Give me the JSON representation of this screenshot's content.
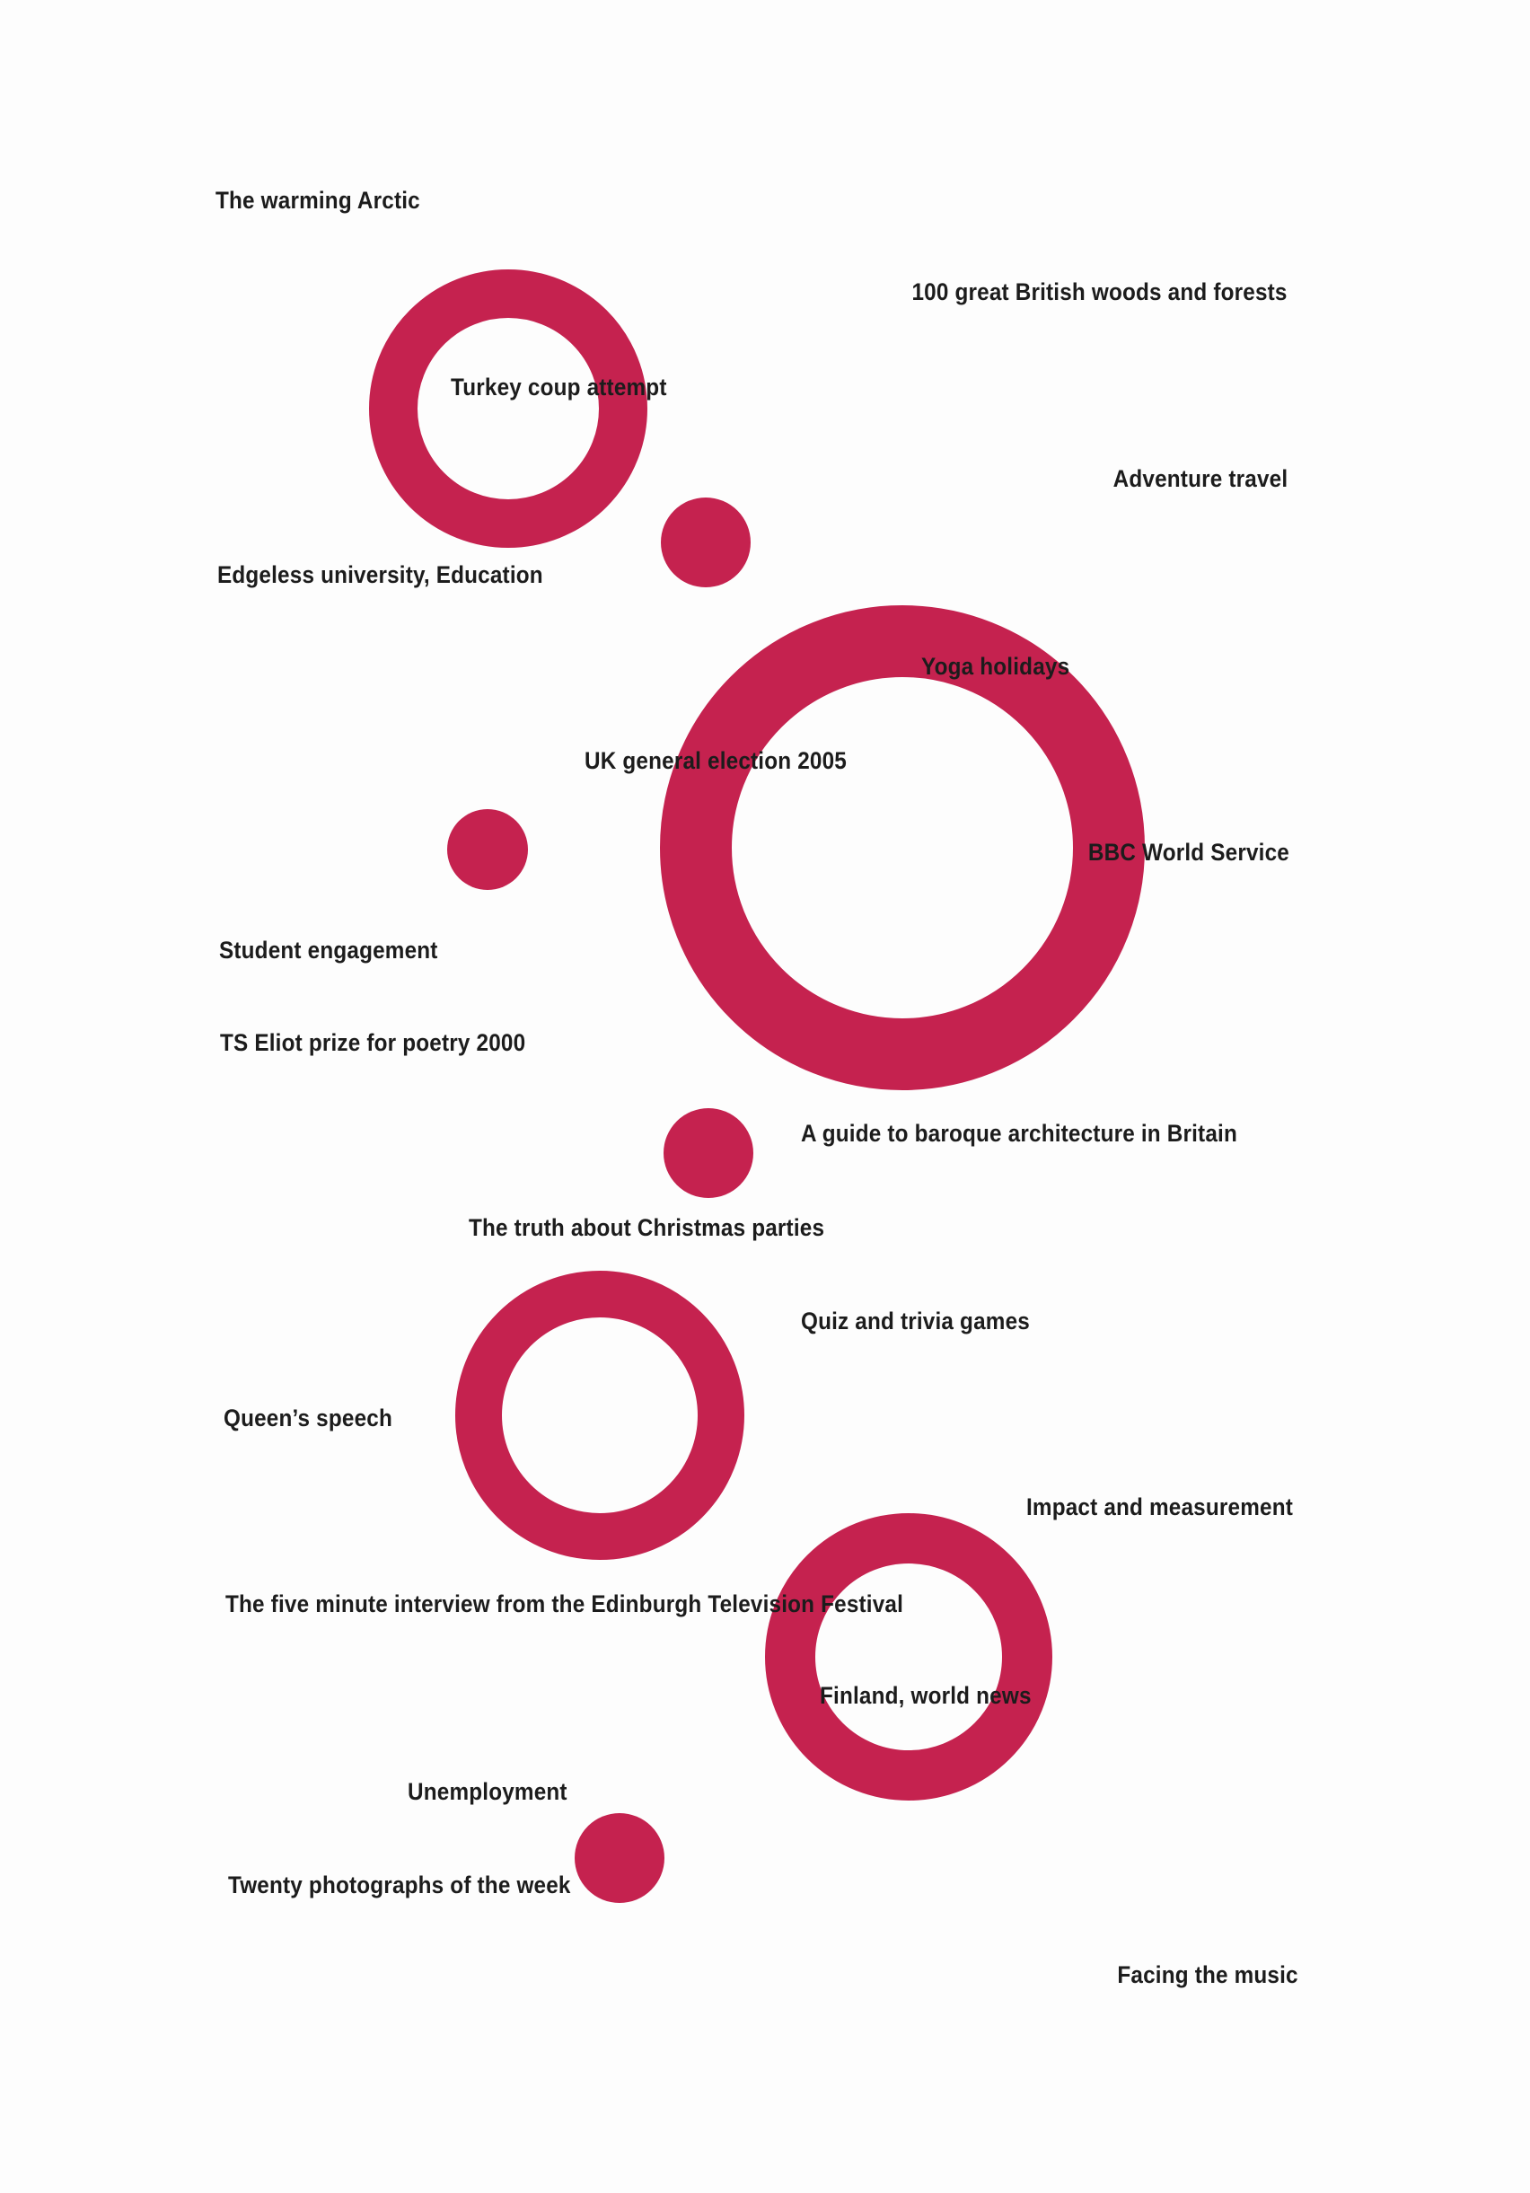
{
  "poster": {
    "ink_color": "#c5224f",
    "labels": {
      "warming_arctic": "The warming Arctic",
      "british_woods": "100 great British woods and forests",
      "turkey_coup": "Turkey coup attempt",
      "adventure_travel": "Adventure travel",
      "edgeless_university": "Edgeless university, Education",
      "yoga_holidays": "Yoga holidays",
      "uk_election": "UK general election 2005",
      "bbc_world_service": "BBC World Service",
      "student_engagement": "Student engagement",
      "ts_eliot": "TS Eliot prize for poetry 2000",
      "baroque_architecture": "A guide to baroque architecture in Britain",
      "christmas_parties": "The truth about Christmas parties",
      "quiz_trivia": "Quiz and trivia games",
      "queens_speech": "Queen’s speech",
      "impact_measurement": "Impact and measurement",
      "five_minute_interview": "The five minute interview from the Edinburgh Television Festival",
      "finland_news": "Finland, world news",
      "unemployment": "Unemployment",
      "twenty_photographs": "Twenty photographs of the week",
      "facing_music": "Facing the music"
    }
  }
}
